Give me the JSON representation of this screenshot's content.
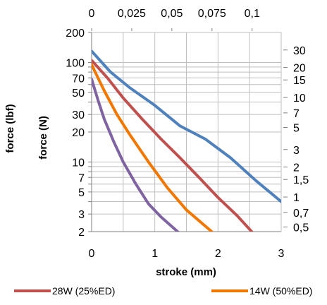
{
  "chart_data": {
    "type": "line",
    "y_scale": "log",
    "grid": true,
    "legend_position": "bottom",
    "xlabel": "stroke (mm)",
    "x_ticks": [
      "0",
      "1",
      "2",
      "3"
    ],
    "xlim": [
      0,
      3
    ],
    "x_top_ticks": [
      "0",
      "0,025",
      "0,05",
      "0,075",
      "0,1"
    ],
    "ylabel_outer": "force (lbf)",
    "ylabel_inner": "force (N)",
    "y_ticks_left": [
      "200",
      "100",
      "70",
      "50",
      "30",
      "20",
      "10",
      "7",
      "5",
      "3",
      "2"
    ],
    "ylim": [
      2,
      200
    ],
    "y_ticks_right": [
      "30",
      "20",
      "15",
      "10",
      "7",
      "5",
      "3",
      "2",
      "1,5",
      "1",
      "0,7",
      "0,5"
    ],
    "series": [
      {
        "color": "#4F81BD",
        "x": [
          0,
          0.3,
          0.6,
          1.0,
          1.4,
          1.8,
          2.2,
          2.6,
          3.0
        ],
        "y": [
          130,
          80,
          56,
          37,
          23,
          17,
          11,
          6.5,
          4
        ]
      },
      {
        "name": "28W (25%ED)",
        "color": "#C0504D",
        "x": [
          0,
          0.25,
          0.5,
          0.8,
          1.1,
          1.4,
          1.7,
          2.0,
          2.3,
          2.6
        ],
        "y": [
          105,
          70,
          44,
          27,
          17,
          11,
          7,
          4.4,
          2.9,
          1.8
        ]
      },
      {
        "name": "14W (50%ED)",
        "color": "#F07800",
        "x": [
          0,
          0.2,
          0.4,
          0.6,
          0.9,
          1.2,
          1.5,
          1.9
        ],
        "y": [
          95,
          52,
          30,
          19,
          10,
          5.5,
          3.3,
          2
        ]
      },
      {
        "color": "#8064A2",
        "x": [
          0,
          0.1,
          0.2,
          0.35,
          0.5,
          0.7,
          0.9,
          1.1,
          1.4
        ],
        "y": [
          68,
          42,
          27,
          16,
          10,
          6,
          3.8,
          2.8,
          1.9
        ]
      }
    ]
  }
}
